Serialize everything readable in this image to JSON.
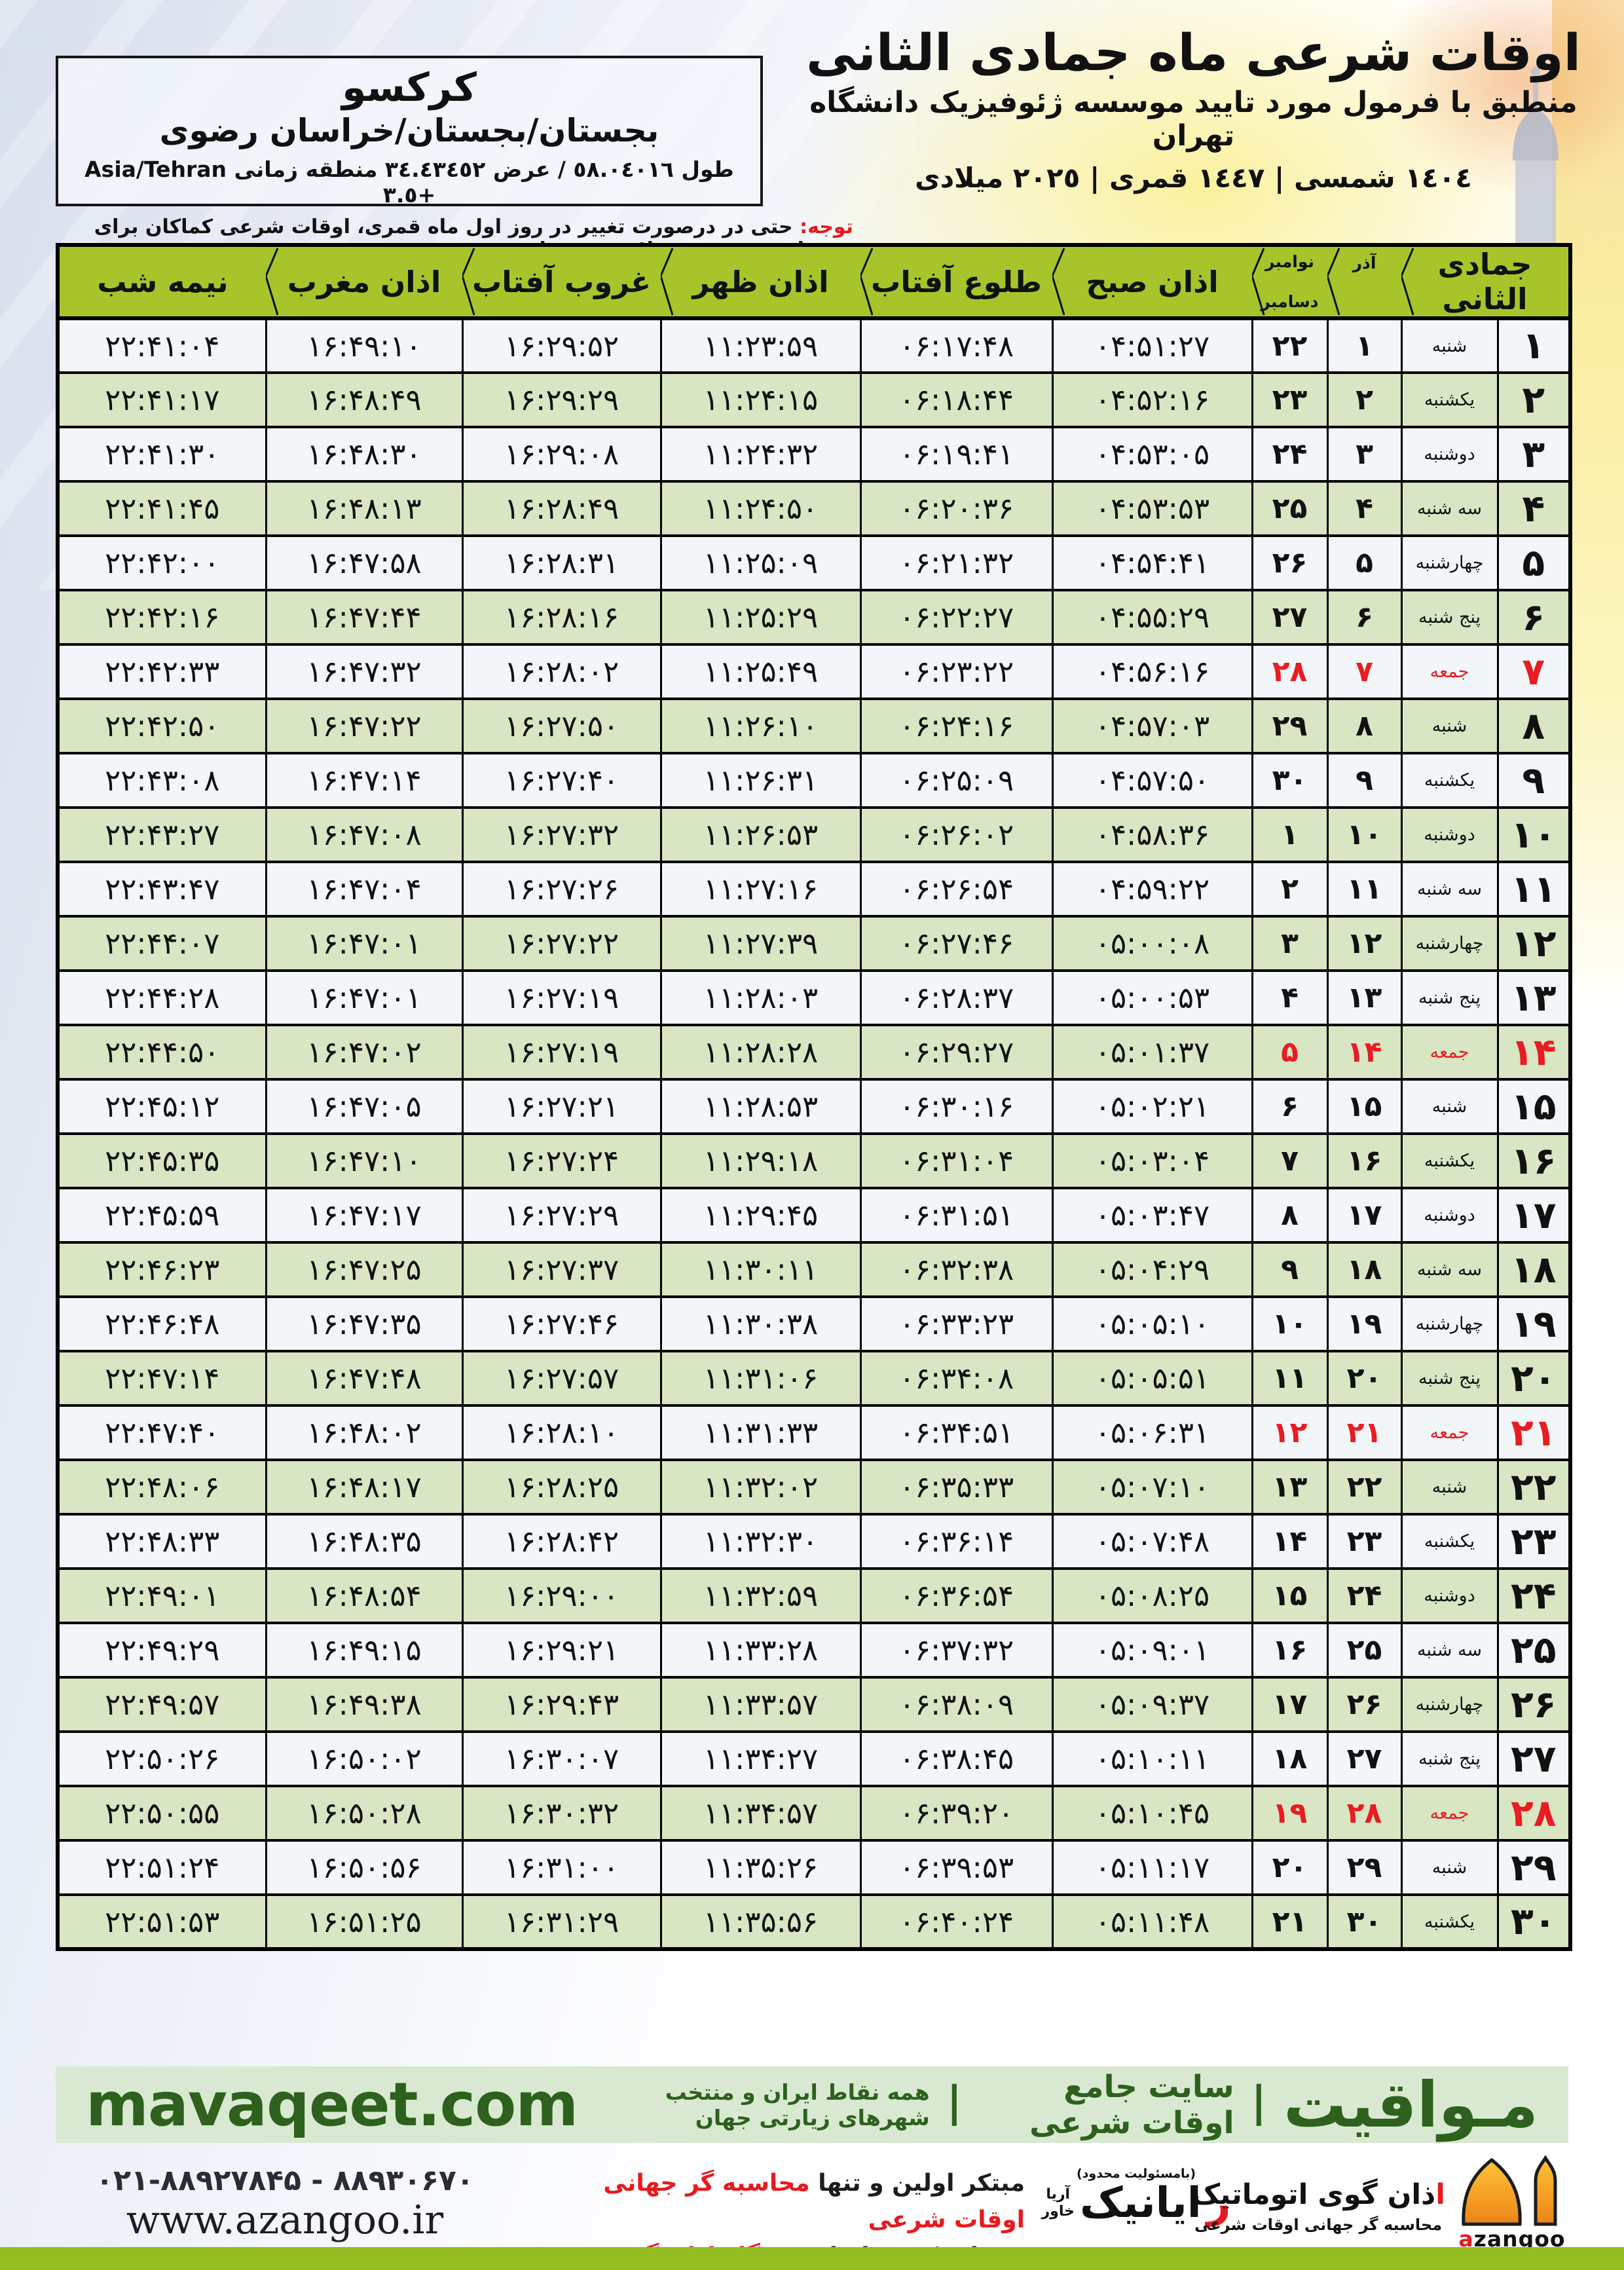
{
  "header": {
    "title": "اوقات شرعی ماه جمادی الثانی",
    "subtitle": "منطبق با فرمول مورد تایید موسسه ژئوفیزیک دانشگاه تهران",
    "years": "١٤٠٤ شمسی | ١٤٤٧ قمری | ٢٠٢٥ میلادی"
  },
  "location": {
    "name": "کرکسو",
    "region": "بجستان/بجستان/خراسان رضوی",
    "coordinates": "طول ٥٨.٠٤٠١٦ / عرض ٣٤.٤٣٤٥٢ منطقه زمانی Asia/Tehran +٣.٥"
  },
  "notice": {
    "label": "توجه:",
    "text": " حتی در درصورت تغییر در روز اول ماه قمری، اوقات شرعی کماکان برای روزهای شمسی و میلادی معتبر است."
  },
  "table": {
    "columns": {
      "month": "جمادی الثانی",
      "azar": "آذر",
      "november": "نوامبر",
      "december": "دسامبر",
      "fajr": "اذان صبح",
      "sunrise": "طلوع آفتاب",
      "dhuhr": "اذان ظهر",
      "sunset": "غروب آفتاب",
      "maghrib": "اذان مغرب",
      "midnight": "نیمه شب"
    },
    "rows": [
      {
        "day": "۱",
        "weekday": "شنبه",
        "azar": "۱",
        "nov": "۲۲",
        "fajr": "۰۴:۵۱:۲۷",
        "sunrise": "۰۶:۱۷:۴۸",
        "dhuhr": "۱۱:۲۳:۵۹",
        "sunset": "۱۶:۲۹:۵۲",
        "maghrib": "۱۶:۴۹:۱۰",
        "midnight": "۲۲:۴۱:۰۴",
        "friday": false
      },
      {
        "day": "۲",
        "weekday": "یکشنبه",
        "azar": "۲",
        "nov": "۲۳",
        "fajr": "۰۴:۵۲:۱۶",
        "sunrise": "۰۶:۱۸:۴۴",
        "dhuhr": "۱۱:۲۴:۱۵",
        "sunset": "۱۶:۲۹:۲۹",
        "maghrib": "۱۶:۴۸:۴۹",
        "midnight": "۲۲:۴۱:۱۷",
        "friday": false
      },
      {
        "day": "۳",
        "weekday": "دوشنبه",
        "azar": "۳",
        "nov": "۲۴",
        "fajr": "۰۴:۵۳:۰۵",
        "sunrise": "۰۶:۱۹:۴۱",
        "dhuhr": "۱۱:۲۴:۳۲",
        "sunset": "۱۶:۲۹:۰۸",
        "maghrib": "۱۶:۴۸:۳۰",
        "midnight": "۲۲:۴۱:۳۰",
        "friday": false
      },
      {
        "day": "۴",
        "weekday": "سه شنبه",
        "azar": "۴",
        "nov": "۲۵",
        "fajr": "۰۴:۵۳:۵۳",
        "sunrise": "۰۶:۲۰:۳۶",
        "dhuhr": "۱۱:۲۴:۵۰",
        "sunset": "۱۶:۲۸:۴۹",
        "maghrib": "۱۶:۴۸:۱۳",
        "midnight": "۲۲:۴۱:۴۵",
        "friday": false
      },
      {
        "day": "۵",
        "weekday": "چهارشنبه",
        "azar": "۵",
        "nov": "۲۶",
        "fajr": "۰۴:۵۴:۴۱",
        "sunrise": "۰۶:۲۱:۳۲",
        "dhuhr": "۱۱:۲۵:۰۹",
        "sunset": "۱۶:۲۸:۳۱",
        "maghrib": "۱۶:۴۷:۵۸",
        "midnight": "۲۲:۴۲:۰۰",
        "friday": false
      },
      {
        "day": "۶",
        "weekday": "پنج شنبه",
        "azar": "۶",
        "nov": "۲۷",
        "fajr": "۰۴:۵۵:۲۹",
        "sunrise": "۰۶:۲۲:۲۷",
        "dhuhr": "۱۱:۲۵:۲۹",
        "sunset": "۱۶:۲۸:۱۶",
        "maghrib": "۱۶:۴۷:۴۴",
        "midnight": "۲۲:۴۲:۱۶",
        "friday": false
      },
      {
        "day": "۷",
        "weekday": "جمعه",
        "azar": "۷",
        "nov": "۲۸",
        "fajr": "۰۴:۵۶:۱۶",
        "sunrise": "۰۶:۲۳:۲۲",
        "dhuhr": "۱۱:۲۵:۴۹",
        "sunset": "۱۶:۲۸:۰۲",
        "maghrib": "۱۶:۴۷:۳۲",
        "midnight": "۲۲:۴۲:۳۳",
        "friday": true
      },
      {
        "day": "۸",
        "weekday": "شنبه",
        "azar": "۸",
        "nov": "۲۹",
        "fajr": "۰۴:۵۷:۰۳",
        "sunrise": "۰۶:۲۴:۱۶",
        "dhuhr": "۱۱:۲۶:۱۰",
        "sunset": "۱۶:۲۷:۵۰",
        "maghrib": "۱۶:۴۷:۲۲",
        "midnight": "۲۲:۴۲:۵۰",
        "friday": false
      },
      {
        "day": "۹",
        "weekday": "یکشنبه",
        "azar": "۹",
        "nov": "۳۰",
        "fajr": "۰۴:۵۷:۵۰",
        "sunrise": "۰۶:۲۵:۰۹",
        "dhuhr": "۱۱:۲۶:۳۱",
        "sunset": "۱۶:۲۷:۴۰",
        "maghrib": "۱۶:۴۷:۱۴",
        "midnight": "۲۲:۴۳:۰۸",
        "friday": false
      },
      {
        "day": "۱۰",
        "weekday": "دوشنبه",
        "azar": "۱۰",
        "nov": "۱",
        "fajr": "۰۴:۵۸:۳۶",
        "sunrise": "۰۶:۲۶:۰۲",
        "dhuhr": "۱۱:۲۶:۵۳",
        "sunset": "۱۶:۲۷:۳۲",
        "maghrib": "۱۶:۴۷:۰۸",
        "midnight": "۲۲:۴۳:۲۷",
        "friday": false
      },
      {
        "day": "۱۱",
        "weekday": "سه شنبه",
        "azar": "۱۱",
        "nov": "۲",
        "fajr": "۰۴:۵۹:۲۲",
        "sunrise": "۰۶:۲۶:۵۴",
        "dhuhr": "۱۱:۲۷:۱۶",
        "sunset": "۱۶:۲۷:۲۶",
        "maghrib": "۱۶:۴۷:۰۴",
        "midnight": "۲۲:۴۳:۴۷",
        "friday": false
      },
      {
        "day": "۱۲",
        "weekday": "چهارشنبه",
        "azar": "۱۲",
        "nov": "۳",
        "fajr": "۰۵:۰۰:۰۸",
        "sunrise": "۰۶:۲۷:۴۶",
        "dhuhr": "۱۱:۲۷:۳۹",
        "sunset": "۱۶:۲۷:۲۲",
        "maghrib": "۱۶:۴۷:۰۱",
        "midnight": "۲۲:۴۴:۰۷",
        "friday": false
      },
      {
        "day": "۱۳",
        "weekday": "پنج شنبه",
        "azar": "۱۳",
        "nov": "۴",
        "fajr": "۰۵:۰۰:۵۳",
        "sunrise": "۰۶:۲۸:۳۷",
        "dhuhr": "۱۱:۲۸:۰۳",
        "sunset": "۱۶:۲۷:۱۹",
        "maghrib": "۱۶:۴۷:۰۱",
        "midnight": "۲۲:۴۴:۲۸",
        "friday": false
      },
      {
        "day": "۱۴",
        "weekday": "جمعه",
        "azar": "۱۴",
        "nov": "۵",
        "fajr": "۰۵:۰۱:۳۷",
        "sunrise": "۰۶:۲۹:۲۷",
        "dhuhr": "۱۱:۲۸:۲۸",
        "sunset": "۱۶:۲۷:۱۹",
        "maghrib": "۱۶:۴۷:۰۲",
        "midnight": "۲۲:۴۴:۵۰",
        "friday": true
      },
      {
        "day": "۱۵",
        "weekday": "شنبه",
        "azar": "۱۵",
        "nov": "۶",
        "fajr": "۰۵:۰۲:۲۱",
        "sunrise": "۰۶:۳۰:۱۶",
        "dhuhr": "۱۱:۲۸:۵۳",
        "sunset": "۱۶:۲۷:۲۱",
        "maghrib": "۱۶:۴۷:۰۵",
        "midnight": "۲۲:۴۵:۱۲",
        "friday": false
      },
      {
        "day": "۱۶",
        "weekday": "یکشنبه",
        "azar": "۱۶",
        "nov": "۷",
        "fajr": "۰۵:۰۳:۰۴",
        "sunrise": "۰۶:۳۱:۰۴",
        "dhuhr": "۱۱:۲۹:۱۸",
        "sunset": "۱۶:۲۷:۲۴",
        "maghrib": "۱۶:۴۷:۱۰",
        "midnight": "۲۲:۴۵:۳۵",
        "friday": false
      },
      {
        "day": "۱۷",
        "weekday": "دوشنبه",
        "azar": "۱۷",
        "nov": "۸",
        "fajr": "۰۵:۰۳:۴۷",
        "sunrise": "۰۶:۳۱:۵۱",
        "dhuhr": "۱۱:۲۹:۴۵",
        "sunset": "۱۶:۲۷:۲۹",
        "maghrib": "۱۶:۴۷:۱۷",
        "midnight": "۲۲:۴۵:۵۹",
        "friday": false
      },
      {
        "day": "۱۸",
        "weekday": "سه شنبه",
        "azar": "۱۸",
        "nov": "۹",
        "fajr": "۰۵:۰۴:۲۹",
        "sunrise": "۰۶:۳۲:۳۸",
        "dhuhr": "۱۱:۳۰:۱۱",
        "sunset": "۱۶:۲۷:۳۷",
        "maghrib": "۱۶:۴۷:۲۵",
        "midnight": "۲۲:۴۶:۲۳",
        "friday": false
      },
      {
        "day": "۱۹",
        "weekday": "چهارشنبه",
        "azar": "۱۹",
        "nov": "۱۰",
        "fajr": "۰۵:۰۵:۱۰",
        "sunrise": "۰۶:۳۳:۲۳",
        "dhuhr": "۱۱:۳۰:۳۸",
        "sunset": "۱۶:۲۷:۴۶",
        "maghrib": "۱۶:۴۷:۳۵",
        "midnight": "۲۲:۴۶:۴۸",
        "friday": false
      },
      {
        "day": "۲۰",
        "weekday": "پنج شنبه",
        "azar": "۲۰",
        "nov": "۱۱",
        "fajr": "۰۵:۰۵:۵۱",
        "sunrise": "۰۶:۳۴:۰۸",
        "dhuhr": "۱۱:۳۱:۰۶",
        "sunset": "۱۶:۲۷:۵۷",
        "maghrib": "۱۶:۴۷:۴۸",
        "midnight": "۲۲:۴۷:۱۴",
        "friday": false
      },
      {
        "day": "۲۱",
        "weekday": "جمعه",
        "azar": "۲۱",
        "nov": "۱۲",
        "fajr": "۰۵:۰۶:۳۱",
        "sunrise": "۰۶:۳۴:۵۱",
        "dhuhr": "۱۱:۳۱:۳۳",
        "sunset": "۱۶:۲۸:۱۰",
        "maghrib": "۱۶:۴۸:۰۲",
        "midnight": "۲۲:۴۷:۴۰",
        "friday": true
      },
      {
        "day": "۲۲",
        "weekday": "شنبه",
        "azar": "۲۲",
        "nov": "۱۳",
        "fajr": "۰۵:۰۷:۱۰",
        "sunrise": "۰۶:۳۵:۳۳",
        "dhuhr": "۱۱:۳۲:۰۲",
        "sunset": "۱۶:۲۸:۲۵",
        "maghrib": "۱۶:۴۸:۱۷",
        "midnight": "۲۲:۴۸:۰۶",
        "friday": false
      },
      {
        "day": "۲۳",
        "weekday": "یکشنبه",
        "azar": "۲۳",
        "nov": "۱۴",
        "fajr": "۰۵:۰۷:۴۸",
        "sunrise": "۰۶:۳۶:۱۴",
        "dhuhr": "۱۱:۳۲:۳۰",
        "sunset": "۱۶:۲۸:۴۲",
        "maghrib": "۱۶:۴۸:۳۵",
        "midnight": "۲۲:۴۸:۳۳",
        "friday": false
      },
      {
        "day": "۲۴",
        "weekday": "دوشنبه",
        "azar": "۲۴",
        "nov": "۱۵",
        "fajr": "۰۵:۰۸:۲۵",
        "sunrise": "۰۶:۳۶:۵۴",
        "dhuhr": "۱۱:۳۲:۵۹",
        "sunset": "۱۶:۲۹:۰۰",
        "maghrib": "۱۶:۴۸:۵۴",
        "midnight": "۲۲:۴۹:۰۱",
        "friday": false
      },
      {
        "day": "۲۵",
        "weekday": "سه شنبه",
        "azar": "۲۵",
        "nov": "۱۶",
        "fajr": "۰۵:۰۹:۰۱",
        "sunrise": "۰۶:۳۷:۳۲",
        "dhuhr": "۱۱:۳۳:۲۸",
        "sunset": "۱۶:۲۹:۲۱",
        "maghrib": "۱۶:۴۹:۱۵",
        "midnight": "۲۲:۴۹:۲۹",
        "friday": false
      },
      {
        "day": "۲۶",
        "weekday": "چهارشنبه",
        "azar": "۲۶",
        "nov": "۱۷",
        "fajr": "۰۵:۰۹:۳۷",
        "sunrise": "۰۶:۳۸:۰۹",
        "dhuhr": "۱۱:۳۳:۵۷",
        "sunset": "۱۶:۲۹:۴۳",
        "maghrib": "۱۶:۴۹:۳۸",
        "midnight": "۲۲:۴۹:۵۷",
        "friday": false
      },
      {
        "day": "۲۷",
        "weekday": "پنج شنبه",
        "azar": "۲۷",
        "nov": "۱۸",
        "fajr": "۰۵:۱۰:۱۱",
        "sunrise": "۰۶:۳۸:۴۵",
        "dhuhr": "۱۱:۳۴:۲۷",
        "sunset": "۱۶:۳۰:۰۷",
        "maghrib": "۱۶:۵۰:۰۲",
        "midnight": "۲۲:۵۰:۲۶",
        "friday": false
      },
      {
        "day": "۲۸",
        "weekday": "جمعه",
        "azar": "۲۸",
        "nov": "۱۹",
        "fajr": "۰۵:۱۰:۴۵",
        "sunrise": "۰۶:۳۹:۲۰",
        "dhuhr": "۱۱:۳۴:۵۷",
        "sunset": "۱۶:۳۰:۳۲",
        "maghrib": "۱۶:۵۰:۲۸",
        "midnight": "۲۲:۵۰:۵۵",
        "friday": true
      },
      {
        "day": "۲۹",
        "weekday": "شنبه",
        "azar": "۲۹",
        "nov": "۲۰",
        "fajr": "۰۵:۱۱:۱۷",
        "sunrise": "۰۶:۳۹:۵۳",
        "dhuhr": "۱۱:۳۵:۲۶",
        "sunset": "۱۶:۳۱:۰۰",
        "maghrib": "۱۶:۵۰:۵۶",
        "midnight": "۲۲:۵۱:۲۴",
        "friday": false
      },
      {
        "day": "۳۰",
        "weekday": "یکشنبه",
        "azar": "۳۰",
        "nov": "۲۱",
        "fajr": "۰۵:۱۱:۴۸",
        "sunrise": "۰۶:۴۰:۲۴",
        "dhuhr": "۱۱:۳۵:۵۶",
        "sunset": "۱۶:۳۱:۲۹",
        "maghrib": "۱۶:۵۱:۲۵",
        "midnight": "۲۲:۵۱:۵۳",
        "friday": false
      }
    ]
  },
  "band": {
    "brand": "مـواقیت",
    "sep": "|",
    "site_desc": "سایت جامع اوقات شرعی",
    "coverage": "همه نقاط ایران و منتخب شهرهای زیارتی جهان",
    "url": "mavaqeet.com"
  },
  "footer": {
    "phone": "۰۲۱-۸۸۹۲۷۸۴۵ - ۸۸۹۳۰۶۷۰",
    "website": "www.azangoo.ir",
    "line1_black": "مبتکر اولین و تنها ",
    "line1_red": "محاسبه گر جهانی اوقات شرعی",
    "line2_black": "و تولید کننده انواع ",
    "line2_red": "دستگاه اذان گوی تمام خودکار ماهواره ای",
    "rayanik": {
      "note": "(بامسئولیت محدود)",
      "initial": "ر",
      "name": "ایانیک",
      "sub1": "آریا",
      "sub2": "خاور"
    },
    "azangoo": {
      "alef": "ا",
      "name_rest": "ذان گوی اتوماتیک",
      "slogan": "محاسبه گر جهانی اوقات شرعی",
      "latin_a": "a",
      "latin_rest": "zangoo"
    }
  },
  "colors": {
    "accent_red": "#e8191f",
    "header_green": "#a7c52a",
    "row_green": "#d8e6c3",
    "row_white": "#f3f6f9",
    "band_bg": "#d9e9d1",
    "band_text_green": "#2d611d",
    "bottom_bar_green": "#93bd21",
    "logo_orange": "#f2991f"
  }
}
